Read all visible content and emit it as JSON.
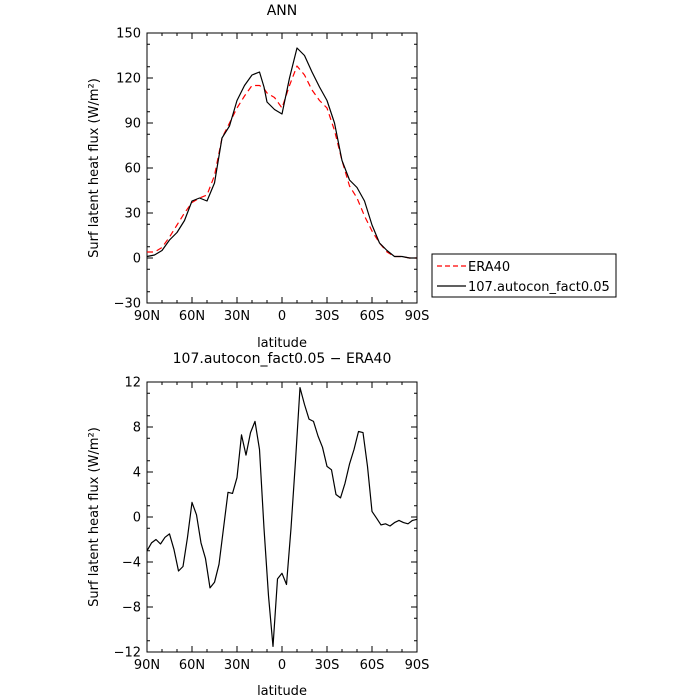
{
  "chart_data": [
    {
      "type": "line",
      "title": "ANN",
      "xlabel": "latitude",
      "ylabel": "Surf latent heat flux",
      "ylabel_unit": "(W/m²)",
      "x_ticks": [
        "90N",
        "60N",
        "30N",
        "0",
        "30S",
        "60S",
        "90S"
      ],
      "y_ticks": [
        "150",
        "120",
        "90",
        "60",
        "30",
        "0",
        "−30"
      ],
      "xlim": [
        90,
        -90
      ],
      "ylim": [
        -30,
        150
      ],
      "x": [
        90,
        85,
        80,
        75,
        70,
        65,
        60,
        55,
        50,
        45,
        40,
        35,
        30,
        25,
        20,
        15,
        12,
        10,
        5,
        0,
        -5,
        -10,
        -15,
        -20,
        -25,
        -30,
        -35,
        -40,
        -45,
        -50,
        -55,
        -60,
        -65,
        -70,
        -75,
        -80,
        -85,
        -90
      ],
      "series": [
        {
          "name": "ERA40",
          "color": "#ff0000",
          "dash": true,
          "values": [
            4,
            4,
            7,
            14,
            22,
            30,
            37,
            40,
            42,
            55,
            80,
            90,
            100,
            108,
            115,
            115,
            113,
            110,
            107,
            100,
            115,
            128,
            122,
            112,
            105,
            100,
            85,
            65,
            48,
            40,
            28,
            18,
            10,
            4,
            1,
            1,
            0,
            0
          ]
        },
        {
          "name": "107.autocon_fact0.05",
          "color": "#000000",
          "dash": false,
          "values": [
            1,
            2,
            5,
            12,
            17,
            25,
            38,
            40,
            38,
            50,
            80,
            88,
            105,
            115,
            122,
            124,
            114,
            104,
            99,
            96,
            120,
            140,
            135,
            124,
            114,
            105,
            90,
            65,
            52,
            47,
            38,
            22,
            10,
            5,
            1,
            1,
            0,
            0
          ]
        }
      ],
      "legend": "right"
    },
    {
      "type": "line",
      "title": "107.autocon_fact0.05 − ERA40",
      "xlabel": "latitude",
      "ylabel": "Surf latent heat flux",
      "ylabel_unit": "(W/m²)",
      "x_ticks": [
        "90N",
        "60N",
        "30N",
        "0",
        "30S",
        "60S",
        "90S"
      ],
      "y_ticks": [
        "12",
        "8",
        "4",
        "0",
        "−4",
        "−8",
        "−12"
      ],
      "xlim": [
        90,
        -90
      ],
      "ylim": [
        -12,
        12
      ],
      "x": [
        90,
        87,
        84,
        81,
        78,
        75,
        72,
        69,
        66,
        63,
        60,
        57,
        54,
        51,
        48,
        45,
        42,
        39,
        36,
        33,
        30,
        27,
        24,
        21,
        18,
        15,
        12,
        9,
        6,
        3,
        0,
        -3,
        -6,
        -9,
        -12,
        -15,
        -18,
        -21,
        -24,
        -27,
        -30,
        -33,
        -36,
        -39,
        -42,
        -45,
        -48,
        -51,
        -54,
        -57,
        -60,
        -63,
        -66,
        -69,
        -72,
        -75,
        -78,
        -81,
        -84,
        -87,
        -90
      ],
      "series": [
        {
          "name": "107.autocon_fact0.05 − ERA40",
          "color": "#000000",
          "values": [
            -3,
            -2.3,
            -2,
            -2.4,
            -1.8,
            -1.5,
            -2.9,
            -4.8,
            -4.4,
            -1.8,
            1.3,
            0.2,
            -2.3,
            -3.7,
            -6.3,
            -5.8,
            -4.2,
            -1,
            2.2,
            2.1,
            3.5,
            7.3,
            5.5,
            7.5,
            8.5,
            6,
            -1,
            -7,
            -11.5,
            -5.5,
            -5,
            -6,
            -1,
            5,
            11.5,
            10,
            8.7,
            8.5,
            7.2,
            6.2,
            4.5,
            4.2,
            2,
            1.7,
            3,
            4.7,
            6,
            7.6,
            7.5,
            4.5,
            0.5,
            -0.1,
            -0.7,
            -0.6,
            -0.8,
            -0.5,
            -0.3,
            -0.5,
            -0.6,
            -0.3,
            -0.2
          ]
        }
      ]
    }
  ]
}
